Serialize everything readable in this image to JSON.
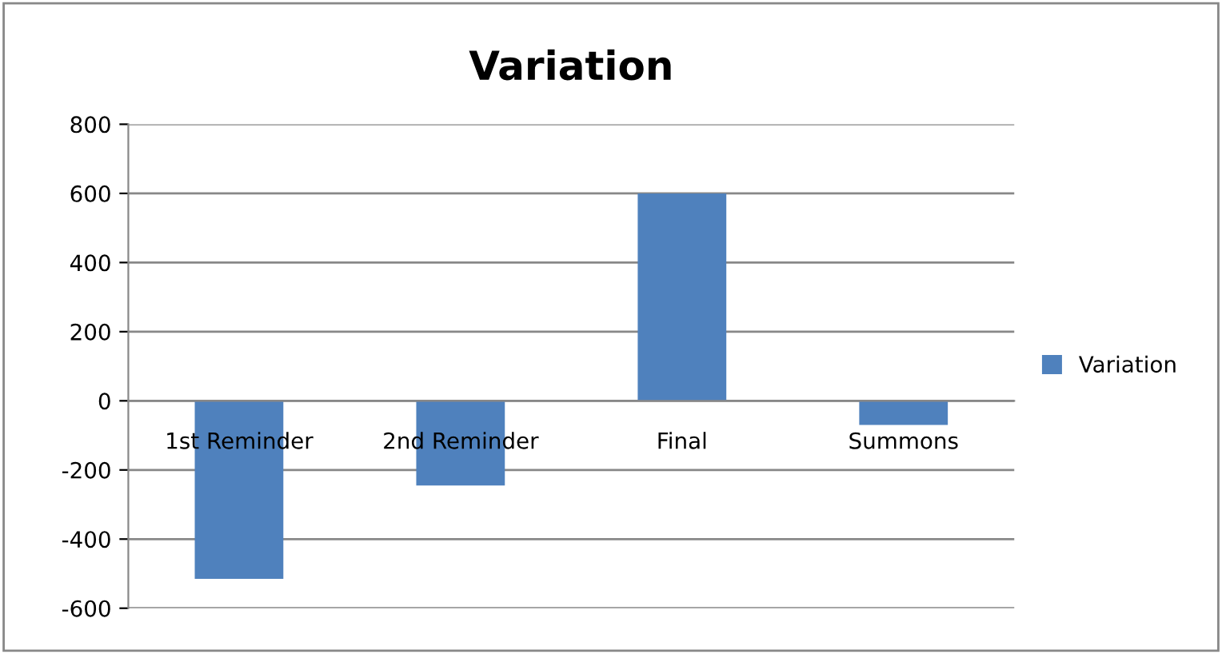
{
  "chart_data": {
    "type": "bar",
    "title": "Variation",
    "categories": [
      "1st Reminder",
      "2nd Reminder",
      "Final",
      "Summons"
    ],
    "series": [
      {
        "name": "Variation",
        "color": "#4f81bd",
        "values": [
          -515,
          -245,
          600,
          -70
        ]
      }
    ],
    "ylim": [
      -600,
      800
    ],
    "yticks": [
      -600,
      -400,
      -200,
      0,
      200,
      400,
      600,
      800
    ],
    "grid": "y",
    "legend": "right"
  }
}
